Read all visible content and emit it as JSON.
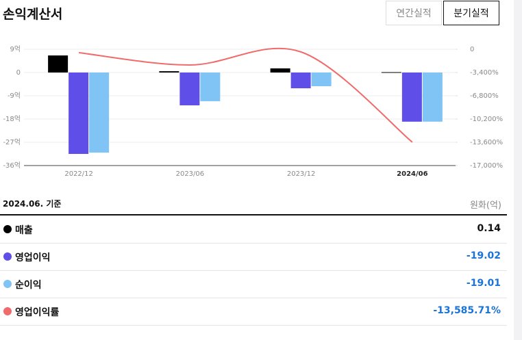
{
  "chart_data": {
    "type": "bar-line",
    "title": "손익계산서",
    "tabs": [
      "연간실적",
      "분기실적"
    ],
    "active_tab": 1,
    "categories": [
      "2022/12",
      "2023/06",
      "2023/12",
      "2024/06"
    ],
    "selected_category": 3,
    "series": [
      {
        "name": "매출",
        "color": "#000000",
        "values": [
          6.6,
          0.5,
          1.6,
          0.14
        ]
      },
      {
        "name": "영업이익",
        "color": "#5f4ee8",
        "values": [
          -31.5,
          -12.7,
          -6.1,
          -19.02
        ]
      },
      {
        "name": "순이익",
        "color": "#80c4f6",
        "values": [
          -31.0,
          -11.1,
          -5.3,
          -19.01
        ]
      },
      {
        "name": "영업이익률",
        "color": "#f06b6b",
        "axis": "y2",
        "values": [
          -500,
          -2300,
          -400,
          -13585.71
        ],
        "value_labels": [
          null,
          null,
          null,
          "-13,585.71%"
        ]
      }
    ],
    "ylim": [
      -36,
      9
    ],
    "yticks": [
      {
        "value": 9,
        "label": "9억"
      },
      0,
      {
        "value": -9,
        "label": "-9억"
      },
      {
        "value": -18,
        "label": "-18억"
      },
      {
        "value": -27,
        "label": "-27억"
      },
      {
        "value": -36,
        "label": "-36억"
      }
    ],
    "y2lim": [
      -17000,
      0
    ],
    "y2ticks": [
      0,
      {
        "value": -3400,
        "label": "-3,400%"
      },
      {
        "value": -6800,
        "label": "-6,800%"
      },
      {
        "value": -10200,
        "label": "-10,200%"
      },
      {
        "value": -13600,
        "label": "-13,600%"
      },
      {
        "value": -17000,
        "label": "-17,000%"
      }
    ],
    "grid": true,
    "table_period": "2024.06. 기준",
    "table_unit": "원화(억)"
  }
}
